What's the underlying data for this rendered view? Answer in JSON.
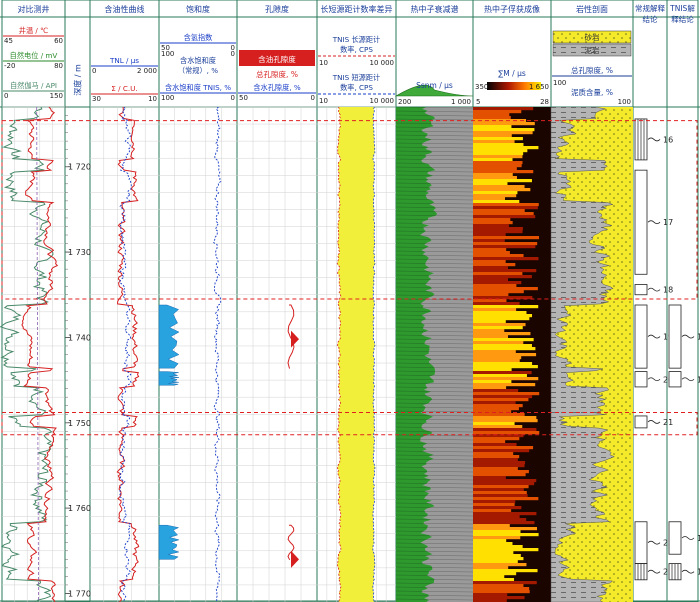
{
  "chart_data": {
    "type": "well-log",
    "depth": {
      "label": "深度 / m",
      "range": [
        1713,
        1771
      ],
      "ticks": [
        1720,
        1730,
        1740,
        1750,
        1760,
        1770
      ],
      "tick_labels": [
        "1 720",
        "1 730",
        "1 740",
        "1 750",
        "1 760",
        "1 770"
      ]
    },
    "track_titles": [
      "对比测井",
      "含油性曲线",
      "饱和度",
      "孔隙度",
      "长短源距计数率差异",
      "热中子衰减谱",
      "热中子俘获成像",
      "岩性剖面",
      "常规解释结论",
      "TNIS 解释结论"
    ],
    "curve_headers": {
      "t1": [
        {
          "label": "井温 / ℃",
          "min": "45",
          "max": "60",
          "color": "#d62020"
        },
        {
          "label": "自然电位 / mV",
          "min": "-20",
          "max": "80",
          "color": "#2a8a2a"
        },
        {
          "label": "自然伽马 / API",
          "min": "0",
          "max": "150",
          "color": "#4a8a6a"
        }
      ],
      "t2": [
        {
          "label": "TNL / μs",
          "min": "0",
          "max": "2 000",
          "color": "#1a3ec8"
        },
        {
          "label": "Σ / C.U.",
          "min": "30",
          "max": "10",
          "color": "#d62020"
        }
      ],
      "t3": [
        {
          "label": "含氢指数",
          "min": "50",
          "max": "0",
          "color": "#1a3ec8"
        },
        {
          "label": "含水饱和度（常规）, %",
          "min": "100",
          "max": "0",
          "color": "#1a3ec8"
        },
        {
          "label": "含水饱和度 TNIS, %",
          "min": "100",
          "max": "0",
          "color": "#1a3ec8"
        }
      ],
      "t4": [
        {
          "label": "含油孔隙度",
          "min": "",
          "max": "",
          "color": "#d62020"
        },
        {
          "label": "总孔隙度, %",
          "min": "",
          "max": "",
          "color": "#d62020"
        },
        {
          "label": "含水孔隙度, %",
          "min": "50",
          "max": "0",
          "color": "#1a3ec8"
        }
      ],
      "t5": [
        {
          "label": "TNIS 长源距计数率, CPS",
          "min": "10",
          "max": "10 000",
          "color": "#d62020"
        },
        {
          "label": "TNIS 短源距计数率, CPS",
          "min": "10",
          "max": "10 000",
          "color": "#1a3ec8"
        }
      ],
      "t6": [
        {
          "label": "Ssnm / μs",
          "min": "200",
          "max": "1 000",
          "color": "#1a3e9a"
        }
      ],
      "t7": [
        {
          "label": "∑M / μs",
          "min": "350",
          "max": "1 650",
          "scale_min": "5",
          "scale_max": "28",
          "color": "#1a3e9a"
        }
      ],
      "t8": [
        {
          "label": "砂岩",
          "color": "#f4ea2a"
        },
        {
          "label": "泥岩",
          "color": "#b4b4b4"
        },
        {
          "label": "总孔隙度, %",
          "min": "",
          "max": "",
          "color": "#1a3e9a"
        },
        {
          "label": "泥质含量, %",
          "min": "100",
          "max": "100",
          "color": "#1a3e9a"
        }
      ]
    },
    "conventional_layers": [
      {
        "no": "16",
        "top": 1714.4,
        "bottom": 1719.2,
        "style": "bars"
      },
      {
        "no": "17",
        "top": 1720.4,
        "bottom": 1732.6,
        "style": "plain"
      },
      {
        "no": "18",
        "top": 1733.8,
        "bottom": 1735.0,
        "style": "plain"
      },
      {
        "no": "19",
        "top": 1736.2,
        "bottom": 1743.6,
        "style": "plain"
      },
      {
        "no": "20",
        "top": 1744.0,
        "bottom": 1745.8,
        "style": "plain"
      },
      {
        "no": "21",
        "top": 1749.2,
        "bottom": 1750.6,
        "style": "plain"
      },
      {
        "no": "22",
        "top": 1761.6,
        "bottom": 1766.5,
        "style": "plain"
      },
      {
        "no": "23",
        "top": 1766.5,
        "bottom": 1768.4,
        "style": "bars"
      }
    ],
    "tnis_layers": [
      {
        "no": "16",
        "top": 1736.2,
        "bottom": 1743.6,
        "style": "plain"
      },
      {
        "no": "17",
        "top": 1744.0,
        "bottom": 1745.8,
        "style": "plain"
      },
      {
        "no": "18",
        "top": 1761.6,
        "bottom": 1765.4,
        "style": "plain"
      },
      {
        "no": "19",
        "top": 1766.5,
        "bottom": 1768.4,
        "style": "bars"
      }
    ],
    "zones": [
      {
        "top": 1714.6,
        "bottom": 1735.5
      },
      {
        "top": 1748.8,
        "bottom": 1751.4
      }
    ]
  }
}
